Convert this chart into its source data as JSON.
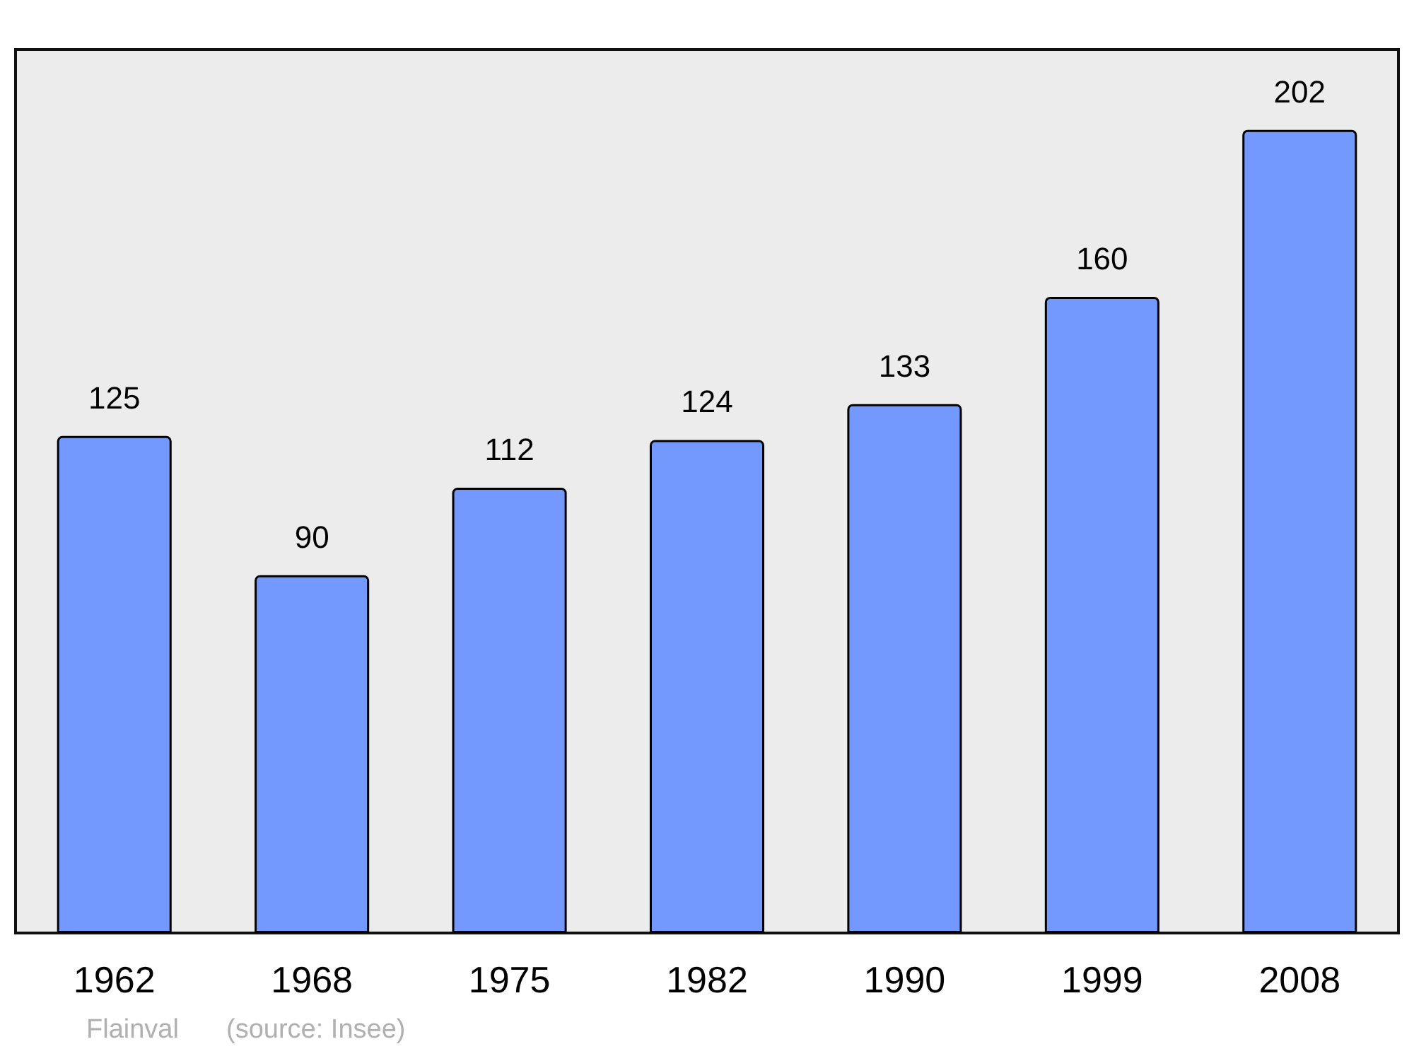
{
  "chart_data": {
    "type": "bar",
    "categories": [
      "1962",
      "1968",
      "1975",
      "1982",
      "1990",
      "1999",
      "2008"
    ],
    "values": [
      125,
      90,
      112,
      124,
      133,
      160,
      202
    ],
    "color": "#7399ff",
    "data_labels": true,
    "tick_labels": "x",
    "annotations": [
      "Flainval",
      "(source: Insee)"
    ]
  }
}
